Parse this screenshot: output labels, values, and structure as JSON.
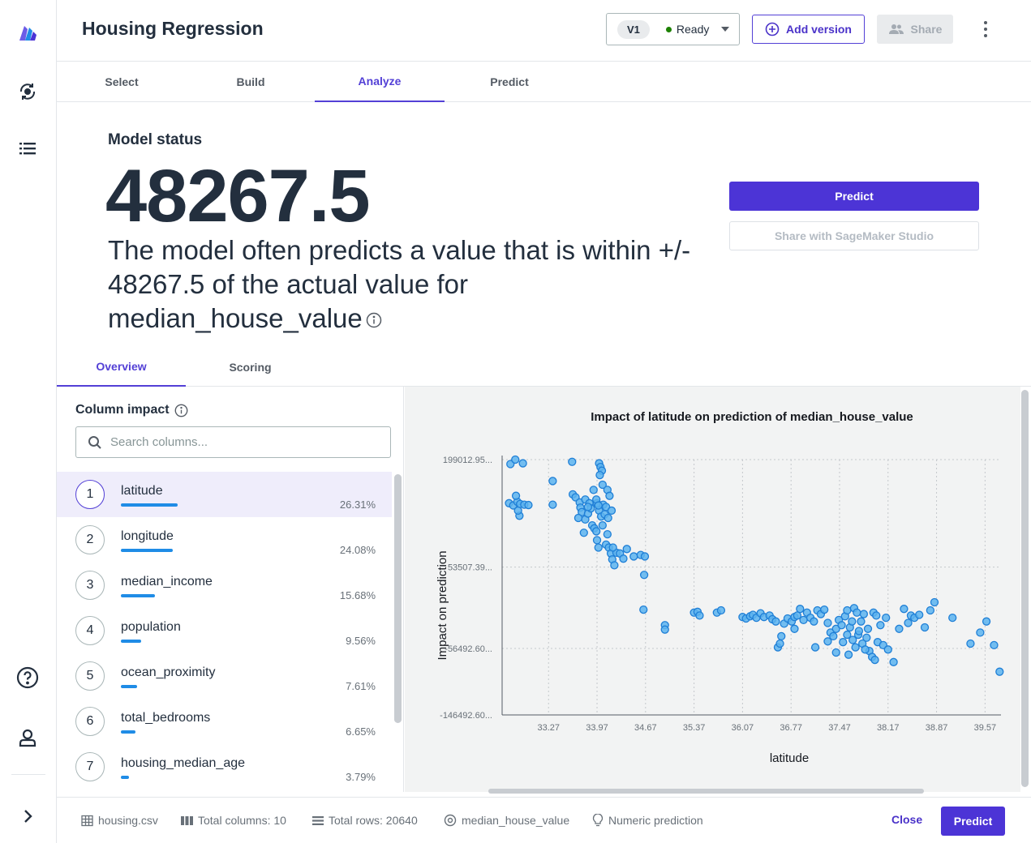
{
  "header": {
    "title": "Housing Regression",
    "version_label": "V1",
    "status": "Ready",
    "add_version_label": "Add version",
    "share_label": "Share"
  },
  "main_tabs": [
    {
      "label": "Select"
    },
    {
      "label": "Build"
    },
    {
      "label": "Analyze",
      "active": true
    },
    {
      "label": "Predict"
    }
  ],
  "model_status": {
    "label": "Model status",
    "value": "48267.5",
    "description": "The model often predicts a value that is within +/- 48267.5 of the actual value for median_house_value",
    "predict_label": "Predict",
    "share_studio_label": "Share with SageMaker Studio"
  },
  "sub_tabs": [
    {
      "label": "Overview",
      "active": true
    },
    {
      "label": "Scoring"
    }
  ],
  "column_impact": {
    "title": "Column impact",
    "search_placeholder": "Search columns...",
    "items": [
      {
        "rank": "1",
        "name": "latitude",
        "pct": "26.31%",
        "value": 26.31
      },
      {
        "rank": "2",
        "name": "longitude",
        "pct": "24.08%",
        "value": 24.08
      },
      {
        "rank": "3",
        "name": "median_income",
        "pct": "15.68%",
        "value": 15.68
      },
      {
        "rank": "4",
        "name": "population",
        "pct": "9.56%",
        "value": 9.56
      },
      {
        "rank": "5",
        "name": "ocean_proximity",
        "pct": "7.61%",
        "value": 7.61
      },
      {
        "rank": "6",
        "name": "total_bedrooms",
        "pct": "6.65%",
        "value": 6.65
      },
      {
        "rank": "7",
        "name": "housing_median_age",
        "pct": "3.79%",
        "value": 3.79
      }
    ]
  },
  "chart_data": {
    "type": "scatter",
    "title": "Impact of latitude on prediction of median_house_value",
    "xlabel": "latitude",
    "ylabel": "Impact on prediction",
    "xlim": [
      32.6,
      39.8
    ],
    "ylim": [
      -146492.6,
      199012.95
    ],
    "x_ticks": [
      {
        "v": 33.27,
        "label": "33.27"
      },
      {
        "v": 33.97,
        "label": "33.97"
      },
      {
        "v": 34.67,
        "label": "34.67"
      },
      {
        "v": 35.37,
        "label": "35.37"
      },
      {
        "v": 36.07,
        "label": "36.07"
      },
      {
        "v": 36.77,
        "label": "36.77"
      },
      {
        "v": 37.47,
        "label": "37.47"
      },
      {
        "v": 38.17,
        "label": "38.17"
      },
      {
        "v": 38.87,
        "label": "38.87"
      },
      {
        "v": 39.57,
        "label": "39.57"
      }
    ],
    "y_ticks": [
      {
        "v": 199012.95,
        "label": "199012.95..."
      },
      {
        "v": 53507.39,
        "label": "53507.39..."
      },
      {
        "v": -56492.6,
        "label": "-56492.60..."
      },
      {
        "v": -146492.6,
        "label": "-146492.60..."
      }
    ],
    "grid": true,
    "points": [
      [
        32.7,
        140000
      ],
      [
        32.76,
        137000
      ],
      [
        32.82,
        142000
      ],
      [
        32.86,
        139000
      ],
      [
        32.92,
        138000
      ],
      [
        32.98,
        137500
      ],
      [
        32.8,
        150000
      ],
      [
        32.85,
        123000
      ],
      [
        32.83,
        130000
      ],
      [
        32.72,
        193000
      ],
      [
        32.79,
        199000
      ],
      [
        32.9,
        194000
      ],
      [
        33.33,
        170000
      ],
      [
        33.33,
        138000
      ],
      [
        33.61,
        196000
      ],
      [
        33.62,
        152000
      ],
      [
        33.66,
        148000
      ],
      [
        33.72,
        141000
      ],
      [
        33.73,
        134000
      ],
      [
        33.75,
        128000
      ],
      [
        33.8,
        145000
      ],
      [
        33.8,
        118000
      ],
      [
        33.84,
        126000
      ],
      [
        33.86,
        140000
      ],
      [
        33.88,
        133000
      ],
      [
        33.9,
        110000
      ],
      [
        33.93,
        106000
      ],
      [
        33.96,
        102000
      ],
      [
        33.97,
        140000
      ],
      [
        34.0,
        130000
      ],
      [
        34.03,
        122000
      ],
      [
        34.05,
        110000
      ],
      [
        34.06,
        138000
      ],
      [
        34.08,
        125000
      ],
      [
        33.92,
        158000
      ],
      [
        34.05,
        165000
      ],
      [
        34.12,
        158000
      ],
      [
        34.15,
        150000
      ],
      [
        34.1,
        135000
      ],
      [
        34.13,
        120000
      ],
      [
        34.18,
        130000
      ],
      [
        33.96,
        145000
      ],
      [
        33.99,
        137000
      ],
      [
        33.7,
        120000
      ],
      [
        33.78,
        100000
      ],
      [
        33.84,
        135000
      ],
      [
        34.0,
        194000
      ],
      [
        34.02,
        189000
      ],
      [
        34.04,
        184000
      ],
      [
        34.01,
        178000
      ],
      [
        33.97,
        90000
      ],
      [
        33.99,
        80000
      ],
      [
        34.12,
        98000
      ],
      [
        34.1,
        84000
      ],
      [
        34.14,
        80000
      ],
      [
        34.17,
        72000
      ],
      [
        34.19,
        64000
      ],
      [
        34.22,
        56000
      ],
      [
        34.25,
        73000
      ],
      [
        34.3,
        72000
      ],
      [
        34.35,
        65000
      ],
      [
        34.4,
        78000
      ],
      [
        34.5,
        68000
      ],
      [
        34.2,
        80000
      ],
      [
        34.6,
        70000
      ],
      [
        34.66,
        68000
      ],
      [
        34.65,
        43000
      ],
      [
        34.64,
        -4000
      ],
      [
        34.95,
        -25000
      ],
      [
        34.95,
        -31000
      ],
      [
        35.37,
        -8000
      ],
      [
        35.42,
        -7000
      ],
      [
        35.45,
        -12000
      ],
      [
        35.7,
        -8000
      ],
      [
        35.76,
        -5000
      ],
      [
        36.07,
        -14000
      ],
      [
        36.12,
        -16000
      ],
      [
        36.18,
        -13000
      ],
      [
        36.22,
        -11000
      ],
      [
        36.27,
        -15000
      ],
      [
        36.33,
        -9000
      ],
      [
        36.38,
        -14000
      ],
      [
        36.46,
        -12000
      ],
      [
        36.5,
        -17000
      ],
      [
        36.55,
        -20000
      ],
      [
        36.58,
        -55000
      ],
      [
        36.61,
        -50000
      ],
      [
        36.63,
        -40000
      ],
      [
        36.67,
        -23000
      ],
      [
        36.72,
        -16000
      ],
      [
        36.78,
        -20000
      ],
      [
        36.82,
        -14000
      ],
      [
        36.86,
        -12000
      ],
      [
        36.9,
        -3000
      ],
      [
        36.95,
        -18000
      ],
      [
        37.0,
        -8000
      ],
      [
        37.05,
        -15000
      ],
      [
        37.1,
        -20000
      ],
      [
        37.15,
        -5000
      ],
      [
        37.2,
        -10000
      ],
      [
        37.25,
        -4000
      ],
      [
        37.3,
        -22000
      ],
      [
        37.34,
        -35000
      ],
      [
        37.38,
        -40000
      ],
      [
        37.42,
        -30000
      ],
      [
        37.46,
        -18000
      ],
      [
        37.5,
        -25000
      ],
      [
        37.55,
        -13000
      ],
      [
        37.58,
        -5000
      ],
      [
        37.62,
        -28000
      ],
      [
        37.66,
        -45000
      ],
      [
        37.7,
        -55000
      ],
      [
        37.74,
        -38000
      ],
      [
        37.78,
        -20000
      ],
      [
        37.82,
        -10000
      ],
      [
        37.86,
        -42000
      ],
      [
        37.9,
        -60000
      ],
      [
        37.94,
        -68000
      ],
      [
        37.98,
        -72000
      ],
      [
        38.02,
        -48000
      ],
      [
        38.06,
        -25000
      ],
      [
        38.1,
        -52000
      ],
      [
        38.14,
        -15000
      ],
      [
        37.6,
        -65000
      ],
      [
        37.68,
        -2000
      ],
      [
        37.75,
        -33000
      ],
      [
        37.8,
        -50000
      ],
      [
        37.88,
        -30000
      ],
      [
        37.96,
        -8000
      ],
      [
        38.0,
        -12000
      ],
      [
        38.17,
        -58000
      ],
      [
        38.25,
        -75000
      ],
      [
        38.33,
        -30000
      ],
      [
        38.4,
        -3000
      ],
      [
        38.46,
        -22000
      ],
      [
        38.5,
        -12000
      ],
      [
        38.55,
        -15000
      ],
      [
        38.62,
        -11000
      ],
      [
        38.7,
        -28000
      ],
      [
        38.78,
        -5000
      ],
      [
        38.84,
        6000
      ],
      [
        39.1,
        -15000
      ],
      [
        39.36,
        -50000
      ],
      [
        39.5,
        -35000
      ],
      [
        39.59,
        -20000
      ],
      [
        39.7,
        -52000
      ],
      [
        39.78,
        -88000
      ],
      [
        37.3,
        -47000
      ],
      [
        37.12,
        -55000
      ],
      [
        36.82,
        -30000
      ],
      [
        37.42,
        -62000
      ],
      [
        37.52,
        -48000
      ],
      [
        37.58,
        -38000
      ],
      [
        37.65,
        -20000
      ],
      [
        37.72,
        -8000
      ],
      [
        37.84,
        -58000
      ]
    ]
  },
  "footer": {
    "dataset": "housing.csv",
    "total_columns": "Total columns: 10",
    "total_rows": "Total rows: 20640",
    "target": "median_house_value",
    "problem_type": "Numeric prediction",
    "close_label": "Close",
    "predict_label": "Predict"
  }
}
